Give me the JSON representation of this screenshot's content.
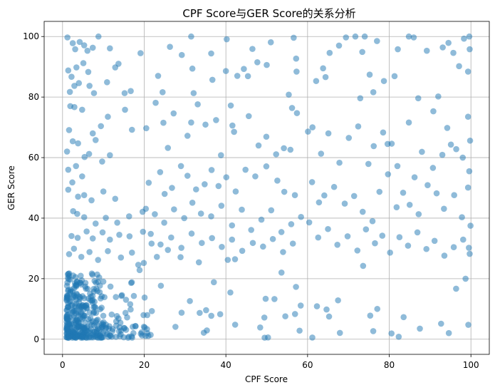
{
  "chart_data": {
    "type": "scatter",
    "title": "CPF Score与GER Score的关系分析",
    "xlabel": "CPF Score",
    "ylabel": "GER Score",
    "xlim": [
      -4.5,
      104.5
    ],
    "ylim": [
      -5,
      105
    ],
    "xticks": [
      0,
      20,
      40,
      60,
      80,
      100
    ],
    "yticks": [
      0,
      20,
      40,
      60,
      80,
      100
    ],
    "grid": true,
    "point_color": "#1f77b4",
    "point_alpha": 0.5,
    "series": [
      {
        "points": [
          [
            1.2,
            99.7
          ],
          [
            2.5,
            97.8
          ],
          [
            3.1,
            95.8
          ],
          [
            4.2,
            98.2
          ],
          [
            5.3,
            97.1
          ],
          [
            6.1,
            95.3
          ],
          [
            7.4,
            96.3
          ],
          [
            8.8,
            100
          ],
          [
            11.6,
            96.1
          ],
          [
            1.4,
            88.8
          ],
          [
            2.2,
            86.7
          ],
          [
            3.4,
            89.8
          ],
          [
            5.1,
            91.2
          ],
          [
            6.3,
            88.3
          ],
          [
            1.8,
            81.7
          ],
          [
            2.9,
            83.7
          ],
          [
            4.0,
            84.6
          ],
          [
            6.6,
            83.7
          ],
          [
            7.7,
            81.3
          ],
          [
            10.9,
            84.9
          ],
          [
            12.9,
            89.8
          ],
          [
            13.7,
            91.0
          ],
          [
            15.2,
            81.3
          ],
          [
            16.7,
            82.0
          ],
          [
            1.9,
            77.0
          ],
          [
            2.9,
            76.7
          ],
          [
            4.8,
            75.8
          ],
          [
            7.4,
            68.0
          ],
          [
            8.1,
            65.8
          ],
          [
            9.4,
            70.4
          ],
          [
            11.1,
            73.5
          ],
          [
            15.3,
            75.8
          ],
          [
            17.0,
            69.2
          ],
          [
            1.6,
            69.1
          ],
          [
            2.5,
            65.4
          ],
          [
            3.8,
            64.7
          ],
          [
            5.4,
            60.2
          ],
          [
            6.5,
            61.2
          ],
          [
            1.1,
            62.0
          ],
          [
            1.4,
            56.0
          ],
          [
            3.3,
            57.2
          ],
          [
            4.8,
            53.8
          ],
          [
            9.7,
            58.7
          ],
          [
            11.6,
            60.8
          ],
          [
            2.4,
            51.8
          ],
          [
            3.8,
            47.1
          ],
          [
            5.3,
            47.6
          ],
          [
            7.1,
            45.9
          ],
          [
            10.0,
            48.8
          ],
          [
            12.9,
            46.4
          ],
          [
            1.4,
            49.4
          ],
          [
            2.6,
            42.3
          ],
          [
            3.6,
            41.4
          ],
          [
            5.3,
            40.3
          ],
          [
            8.1,
            38.2
          ],
          [
            10.6,
            40.1
          ],
          [
            13.4,
            38.5
          ],
          [
            16.3,
            40.6
          ],
          [
            19.6,
            42.1
          ],
          [
            2.2,
            34.1
          ],
          [
            3.7,
            33.5
          ],
          [
            5.9,
            35.6
          ],
          [
            7.4,
            33.3
          ],
          [
            9.8,
            35.3
          ],
          [
            11.6,
            32.9
          ],
          [
            13.9,
            34.5
          ],
          [
            16.4,
            34.0
          ],
          [
            19.7,
            35.5
          ],
          [
            21.8,
            31.6
          ],
          [
            1.6,
            28.1
          ],
          [
            2.8,
            29.9
          ],
          [
            4.6,
            27.2
          ],
          [
            6.6,
            28.8
          ],
          [
            8.7,
            26.2
          ],
          [
            11.1,
            29.1
          ],
          [
            14.3,
            27.0
          ],
          [
            17.0,
            28.6
          ],
          [
            19.9,
            25.2
          ],
          [
            23.1,
            27.2
          ],
          [
            25.8,
            29.5
          ],
          [
            28.9,
            27.1
          ],
          [
            19.1,
            94.5
          ],
          [
            23.4,
            87.0
          ],
          [
            24.5,
            81.6
          ],
          [
            26.3,
            96.6
          ],
          [
            29.2,
            93.9
          ],
          [
            31.5,
            100
          ],
          [
            31.8,
            89.4
          ],
          [
            32.1,
            81.3
          ],
          [
            36.4,
            94.4
          ],
          [
            36.7,
            85.7
          ],
          [
            40.2,
            99.1
          ],
          [
            40.0,
            88.6
          ],
          [
            41.2,
            77.2
          ],
          [
            42.8,
            87.0
          ],
          [
            44.4,
            89.3
          ],
          [
            45.4,
            86.9
          ],
          [
            46.5,
            95.9
          ],
          [
            47.7,
            91.5
          ],
          [
            50.0,
            90.6
          ],
          [
            51.0,
            98.1
          ],
          [
            20.5,
            69.7
          ],
          [
            22.8,
            78.1
          ],
          [
            24.7,
            71.5
          ],
          [
            25.8,
            63.2
          ],
          [
            27.2,
            74.6
          ],
          [
            30.6,
            67.2
          ],
          [
            31.5,
            71.6
          ],
          [
            33.1,
            77.6
          ],
          [
            35.0,
            70.9
          ],
          [
            37.6,
            72.4
          ],
          [
            38.8,
            60.8
          ],
          [
            41.6,
            70.6
          ],
          [
            42.0,
            68.5
          ],
          [
            45.6,
            73.7
          ],
          [
            48.0,
            64.0
          ],
          [
            49.9,
            66.9
          ],
          [
            52.3,
            61.1
          ],
          [
            54.2,
            63.1
          ],
          [
            55.4,
            80.8
          ],
          [
            56.2,
            76.4
          ],
          [
            57.4,
            74.7
          ],
          [
            55.8,
            62.6
          ],
          [
            21.1,
            51.7
          ],
          [
            23.9,
            55.2
          ],
          [
            25.0,
            48.0
          ],
          [
            26.8,
            50.0
          ],
          [
            29.0,
            57.2
          ],
          [
            30.6,
            54.0
          ],
          [
            32.7,
            49.5
          ],
          [
            34.8,
            51.2
          ],
          [
            36.5,
            55.9
          ],
          [
            38.2,
            50.6
          ],
          [
            40.1,
            53.5
          ],
          [
            42.4,
            48.8
          ],
          [
            44.8,
            56.0
          ],
          [
            47.2,
            53.8
          ],
          [
            49.9,
            57.1
          ],
          [
            52.6,
            52.4
          ],
          [
            54.3,
            48.7
          ],
          [
            56.9,
            47.6
          ],
          [
            20.4,
            43.1
          ],
          [
            22.6,
            41.3
          ],
          [
            24.9,
            38.5
          ],
          [
            27.3,
            42.9
          ],
          [
            29.8,
            40.0
          ],
          [
            31.8,
            45.1
          ],
          [
            33.9,
            41.5
          ],
          [
            36.4,
            40.6
          ],
          [
            38.9,
            44.1
          ],
          [
            41.5,
            37.6
          ],
          [
            43.9,
            42.8
          ],
          [
            46.2,
            36.1
          ],
          [
            48.7,
            39.5
          ],
          [
            51.1,
            42.6
          ],
          [
            53.6,
            35.4
          ],
          [
            56.0,
            38.0
          ],
          [
            58.4,
            40.4
          ],
          [
            21.6,
            34.8
          ],
          [
            24.0,
            31.3
          ],
          [
            26.6,
            33.6
          ],
          [
            29.1,
            30.2
          ],
          [
            31.6,
            34.9
          ],
          [
            34.1,
            31.8
          ],
          [
            36.6,
            33.4
          ],
          [
            39.0,
            30.5
          ],
          [
            41.5,
            32.9
          ],
          [
            44.0,
            29.2
          ],
          [
            46.6,
            31.8
          ],
          [
            49.1,
            30.6
          ],
          [
            51.5,
            33.1
          ],
          [
            54.0,
            28.8
          ],
          [
            56.4,
            31.6
          ],
          [
            56.6,
            99.6
          ],
          [
            57.2,
            92.7
          ],
          [
            57.3,
            88.4
          ],
          [
            62.1,
            85.3
          ],
          [
            63.8,
            89.5
          ],
          [
            64.4,
            86.6
          ],
          [
            65.4,
            94.6
          ],
          [
            67.7,
            97.0
          ],
          [
            69.4,
            99.7
          ],
          [
            71.7,
            100
          ],
          [
            72.9,
            79.6
          ],
          [
            73.4,
            94.9
          ],
          [
            74.0,
            100
          ],
          [
            75.2,
            87.4
          ],
          [
            76.1,
            81.6
          ],
          [
            77.0,
            98.5
          ],
          [
            78.7,
            85.3
          ],
          [
            81.3,
            86.9
          ],
          [
            82.1,
            95.8
          ],
          [
            84.8,
            100
          ],
          [
            86.0,
            99.7
          ],
          [
            87.1,
            79.6
          ],
          [
            89.2,
            95.3
          ],
          [
            90.8,
            75.3
          ],
          [
            92.0,
            80.2
          ],
          [
            93.1,
            96.4
          ],
          [
            94.5,
            97.9
          ],
          [
            95.7,
            94.6
          ],
          [
            97.1,
            90.2
          ],
          [
            98.3,
            99.3
          ],
          [
            99.6,
            100
          ],
          [
            99.7,
            95.8
          ],
          [
            99.3,
            88.4
          ],
          [
            60.1,
            68.6
          ],
          [
            61.2,
            70.0
          ],
          [
            63.3,
            61.3
          ],
          [
            65.1,
            68.0
          ],
          [
            67.8,
            58.3
          ],
          [
            70.1,
            66.5
          ],
          [
            72.4,
            70.3
          ],
          [
            74.9,
            57.9
          ],
          [
            76.2,
            63.8
          ],
          [
            78.5,
            68.3
          ],
          [
            79.6,
            64.5
          ],
          [
            80.6,
            64.6
          ],
          [
            82.0,
            57.2
          ],
          [
            84.8,
            71.6
          ],
          [
            86.2,
            53.5
          ],
          [
            88.0,
            61.9
          ],
          [
            90.7,
            56.6
          ],
          [
            93.0,
            60.9
          ],
          [
            94.2,
            69.8
          ],
          [
            95.1,
            64.3
          ],
          [
            96.4,
            62.8
          ],
          [
            98.0,
            60.0
          ],
          [
            99.8,
            65.6
          ],
          [
            99.3,
            73.5
          ],
          [
            61.1,
            51.9
          ],
          [
            62.8,
            45.2
          ],
          [
            64.1,
            47.5
          ],
          [
            66.5,
            50.3
          ],
          [
            69.1,
            44.8
          ],
          [
            71.4,
            47.3
          ],
          [
            73.5,
            42.1
          ],
          [
            75.9,
            39.0
          ],
          [
            77.6,
            48.7
          ],
          [
            79.7,
            54.5
          ],
          [
            81.8,
            43.6
          ],
          [
            83.4,
            48.4
          ],
          [
            85.0,
            44.4
          ],
          [
            87.2,
            41.3
          ],
          [
            89.4,
            50.9
          ],
          [
            91.6,
            48.2
          ],
          [
            93.4,
            43.1
          ],
          [
            95.9,
            47.6
          ],
          [
            97.8,
            40.3
          ],
          [
            99.6,
            55.5
          ],
          [
            99.3,
            50.1
          ],
          [
            60.4,
            38.6
          ],
          [
            62.6,
            33.6
          ],
          [
            65.0,
            36.4
          ],
          [
            67.3,
            31.2
          ],
          [
            69.8,
            34.0
          ],
          [
            72.2,
            29.3
          ],
          [
            74.3,
            36.3
          ],
          [
            76.5,
            31.7
          ],
          [
            78.3,
            34.2
          ],
          [
            80.2,
            28.6
          ],
          [
            82.5,
            33.7
          ],
          [
            84.6,
            30.9
          ],
          [
            86.9,
            35.3
          ],
          [
            89.1,
            29.8
          ],
          [
            91.1,
            32.5
          ],
          [
            93.5,
            27.6
          ],
          [
            95.8,
            30.4
          ],
          [
            98.1,
            32.9
          ],
          [
            99.9,
            37.5
          ],
          [
            99.5,
            30.2
          ],
          [
            99.7,
            28.2
          ]
        ],
        "dense": {
          "n": 420,
          "clusters": [
            {
              "x_range": [
                1,
                10
              ],
              "y_range": [
                0.5,
                22
              ],
              "share": 0.58
            },
            {
              "x_range": [
                1,
                22
              ],
              "y_range": [
                0.5,
                15
              ],
              "share": 0.27
            },
            {
              "x_range": [
                10,
                58
              ],
              "y_range": [
                0.5,
                28
              ],
              "share": 0.1
            },
            {
              "x_range": [
                58,
                100
              ],
              "y_range": [
                0.5,
                27
              ],
              "share": 0.05
            }
          ]
        }
      }
    ]
  }
}
